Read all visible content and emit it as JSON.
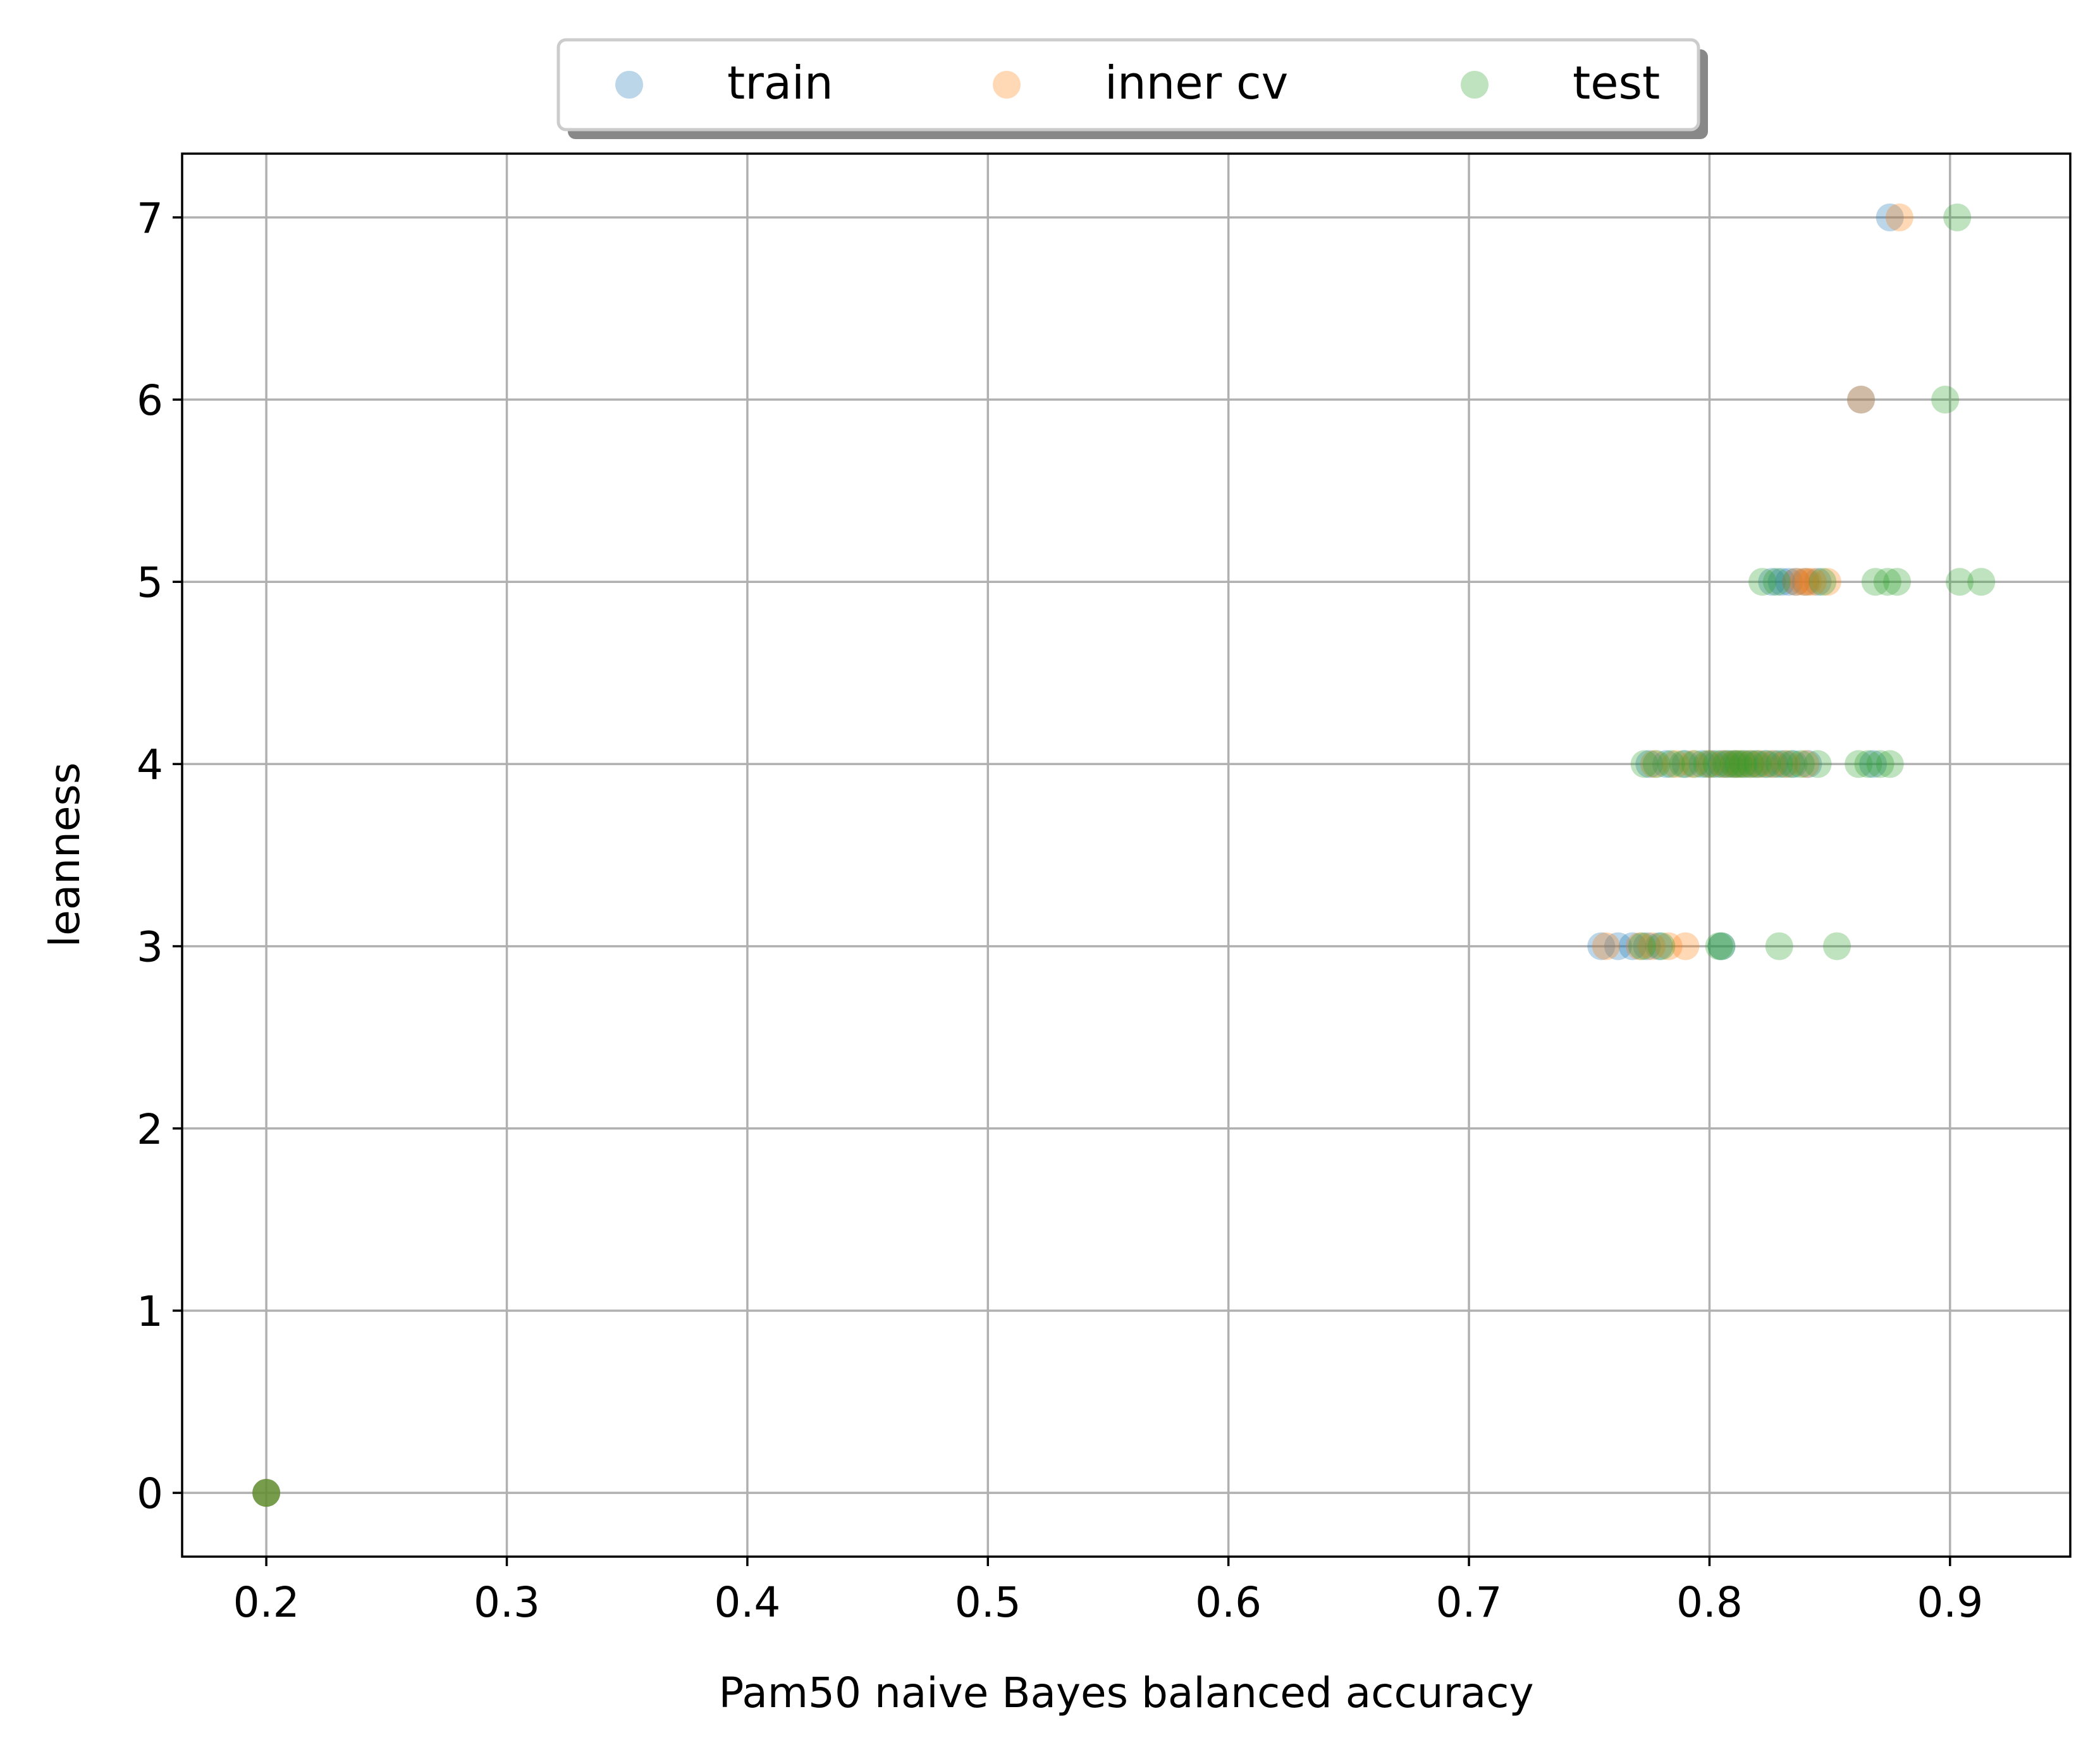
{
  "chart_data": {
    "type": "scatter",
    "xlabel": "Pam50 naive Bayes balanced accuracy",
    "ylabel": "leanness",
    "xlim": [
      0.165,
      0.95
    ],
    "ylim": [
      -0.35,
      7.35
    ],
    "xticks": [
      0.2,
      0.3,
      0.4,
      0.5,
      0.6,
      0.7,
      0.8,
      0.9
    ],
    "yticks": [
      0,
      1,
      2,
      3,
      4,
      5,
      6,
      7
    ],
    "grid": true,
    "legend": {
      "placement": "top-center",
      "columns": 3,
      "shadow": true
    },
    "marker_alpha": 0.3,
    "series": [
      {
        "name": "train",
        "color": "#1f77b4",
        "points": [
          [
            0.2,
            0
          ],
          [
            0.2,
            0
          ],
          [
            0.755,
            3
          ],
          [
            0.762,
            3
          ],
          [
            0.768,
            3
          ],
          [
            0.774,
            3
          ],
          [
            0.779,
            3
          ],
          [
            0.805,
            3
          ],
          [
            0.775,
            4
          ],
          [
            0.782,
            4
          ],
          [
            0.79,
            4
          ],
          [
            0.797,
            4
          ],
          [
            0.801,
            4
          ],
          [
            0.805,
            4
          ],
          [
            0.808,
            4
          ],
          [
            0.811,
            4
          ],
          [
            0.815,
            4
          ],
          [
            0.819,
            4
          ],
          [
            0.823,
            4
          ],
          [
            0.827,
            4
          ],
          [
            0.831,
            4
          ],
          [
            0.835,
            4
          ],
          [
            0.841,
            4
          ],
          [
            0.868,
            4
          ],
          [
            0.826,
            5
          ],
          [
            0.83,
            5
          ],
          [
            0.833,
            5
          ],
          [
            0.836,
            5
          ],
          [
            0.84,
            5
          ],
          [
            0.845,
            5
          ],
          [
            0.863,
            6
          ],
          [
            0.875,
            7
          ]
        ]
      },
      {
        "name": "inner cv",
        "color": "#ff7f0e",
        "points": [
          [
            0.2,
            0
          ],
          [
            0.2,
            0
          ],
          [
            0.757,
            3
          ],
          [
            0.771,
            3
          ],
          [
            0.776,
            3
          ],
          [
            0.783,
            3
          ],
          [
            0.79,
            3
          ],
          [
            0.777,
            4
          ],
          [
            0.786,
            4
          ],
          [
            0.793,
            4
          ],
          [
            0.8,
            4
          ],
          [
            0.806,
            4
          ],
          [
            0.81,
            4
          ],
          [
            0.813,
            4
          ],
          [
            0.817,
            4
          ],
          [
            0.821,
            4
          ],
          [
            0.826,
            4
          ],
          [
            0.832,
            4
          ],
          [
            0.84,
            4
          ],
          [
            0.836,
            5
          ],
          [
            0.839,
            5
          ],
          [
            0.841,
            5
          ],
          [
            0.843,
            5
          ],
          [
            0.849,
            5
          ],
          [
            0.863,
            6
          ],
          [
            0.879,
            7
          ]
        ]
      },
      {
        "name": "test",
        "color": "#2ca02c",
        "points": [
          [
            0.2,
            0
          ],
          [
            0.2,
            0
          ],
          [
            0.772,
            3
          ],
          [
            0.78,
            3
          ],
          [
            0.804,
            3
          ],
          [
            0.805,
            3
          ],
          [
            0.829,
            3
          ],
          [
            0.853,
            3
          ],
          [
            0.773,
            4
          ],
          [
            0.778,
            4
          ],
          [
            0.784,
            4
          ],
          [
            0.789,
            4
          ],
          [
            0.794,
            4
          ],
          [
            0.799,
            4
          ],
          [
            0.803,
            4
          ],
          [
            0.807,
            4
          ],
          [
            0.81,
            4
          ],
          [
            0.812,
            4
          ],
          [
            0.814,
            4
          ],
          [
            0.817,
            4
          ],
          [
            0.82,
            4
          ],
          [
            0.824,
            4
          ],
          [
            0.829,
            4
          ],
          [
            0.834,
            4
          ],
          [
            0.838,
            4
          ],
          [
            0.845,
            4
          ],
          [
            0.862,
            4
          ],
          [
            0.866,
            4
          ],
          [
            0.871,
            4
          ],
          [
            0.875,
            4
          ],
          [
            0.822,
            5
          ],
          [
            0.828,
            5
          ],
          [
            0.847,
            5
          ],
          [
            0.869,
            5
          ],
          [
            0.874,
            5
          ],
          [
            0.878,
            5
          ],
          [
            0.904,
            5
          ],
          [
            0.913,
            5
          ],
          [
            0.898,
            6
          ],
          [
            0.903,
            7
          ]
        ]
      }
    ]
  }
}
